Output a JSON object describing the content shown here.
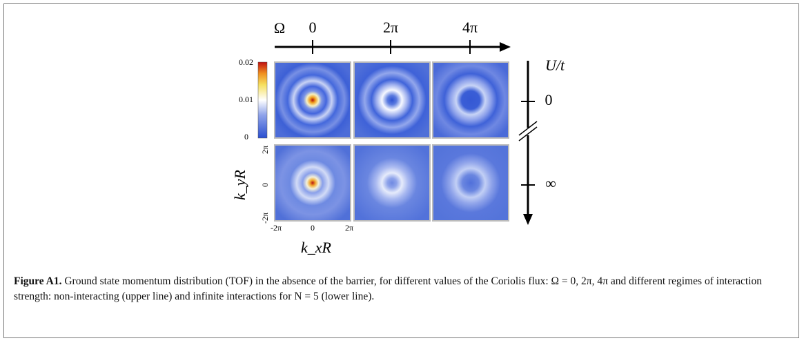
{
  "figure": {
    "top_axis": {
      "label": "Ω",
      "ticks": [
        "0",
        "2π",
        "4π"
      ]
    },
    "right_axis": {
      "label": "U/t",
      "ticks": [
        "0",
        "∞"
      ]
    },
    "colorbar": {
      "ticks": [
        "0.02",
        "0.01",
        "0"
      ]
    },
    "y_axis": {
      "label": "k_yR",
      "ticks": [
        "2π",
        "0",
        "-2π"
      ]
    },
    "x_axis": {
      "label": "k_xR",
      "ticks": [
        "-2π",
        "0",
        "2π"
      ]
    },
    "caption": {
      "label": "Figure A1.",
      "text": "Ground state momentum distribution (TOF) in the absence of the barrier, for different values of the Coriolis flux: Ω = 0, 2π, 4π and different regimes of interaction strength: non-interacting (upper line) and infinite interactions for N = 5 (lower line)."
    }
  }
}
